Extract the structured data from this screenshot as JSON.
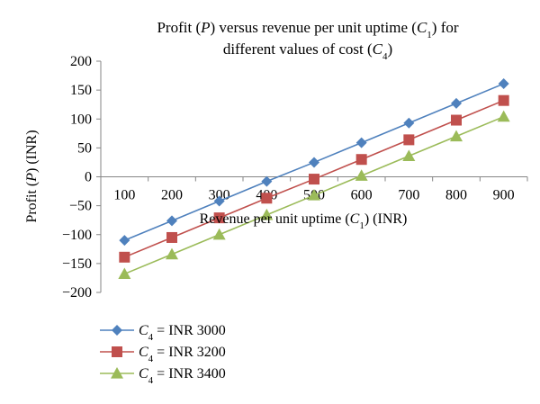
{
  "chart_data": {
    "type": "line",
    "title": {
      "line1": [
        "Profit (",
        "P",
        ") versus revenue per unit uptime (",
        "C",
        "1",
        ") for"
      ],
      "line2": [
        "different values of cost (",
        "C",
        "4",
        ")"
      ]
    },
    "xlabel": [
      "Revenue per unit uptime (",
      "C",
      "1",
      ") (INR)"
    ],
    "ylabel": [
      "Profit (",
      "P",
      ") (INR)"
    ],
    "x": [
      100,
      200,
      300,
      400,
      500,
      600,
      700,
      800,
      900
    ],
    "y_ticks": [
      200,
      150,
      100,
      50,
      0,
      -50,
      -100,
      -150,
      -200
    ],
    "y_tick_labels": [
      "200",
      "150",
      "100",
      "50",
      "0",
      "−50",
      "−100",
      "−150",
      "−200"
    ],
    "ylim": [
      -200,
      200
    ],
    "grid": false,
    "legend_position": "bottom-left",
    "series": [
      {
        "name": "C4 = INR 3000",
        "legend": [
          "C",
          "4",
          " = INR 3000"
        ],
        "color": "#4F81BD",
        "marker": "diamond",
        "values": [
          -110,
          -76,
          -42,
          -8,
          25,
          59,
          93,
          127,
          161
        ]
      },
      {
        "name": "C4 = INR 3200",
        "legend": [
          "C",
          "4",
          " = INR 3200"
        ],
        "color": "#C0504D",
        "marker": "square",
        "values": [
          -139,
          -105,
          -71,
          -37,
          -4,
          30,
          64,
          98,
          132
        ]
      },
      {
        "name": "C4 = INR 3400",
        "legend": [
          "C",
          "4",
          " = INR 3400"
        ],
        "color": "#9BBB59",
        "marker": "triangle",
        "values": [
          -168,
          -134,
          -100,
          -66,
          -32,
          2,
          36,
          70,
          104
        ]
      }
    ]
  }
}
